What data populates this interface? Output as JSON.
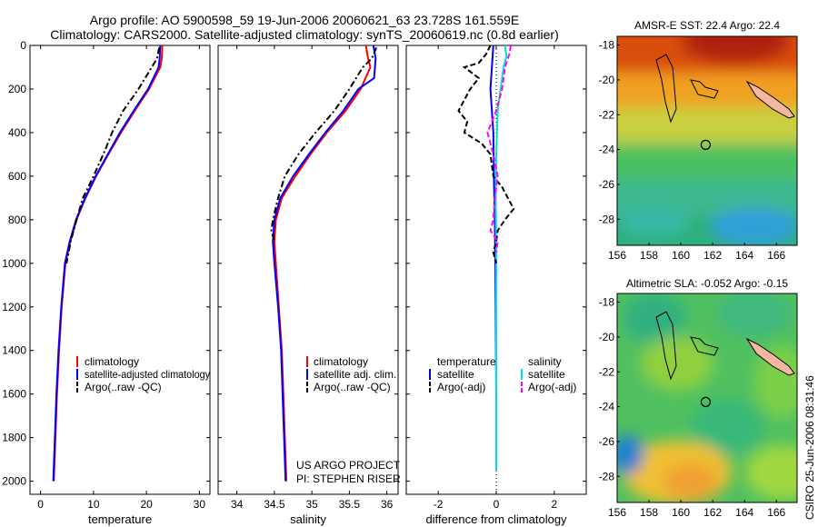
{
  "header": {
    "title_line1": "Argo profile: AO 5900598_59 19-Jun-2006 20060621_63 23.728S 161.559E",
    "title_line2": "Climatology: CARS2000. Satellite-adjusted climatology: synTS_20060619.nc (0.8d earlier)"
  },
  "footer": {
    "project": "US ARGO PROJECT",
    "pi": "PI: STEPHEN RISER",
    "stamp": "CSIRO 25-Jun-2006 08:31:46"
  },
  "colors": {
    "climatology": "#ff0000",
    "satellite": "#0000ff",
    "argo": "#000000",
    "sat_salinity": "#00e0e0",
    "argo_salinity": "#ff00ff"
  },
  "chart_data": [
    {
      "type": "line",
      "id": "temperature",
      "xlabel": "temperature",
      "ylabel": "",
      "xlim": [
        -2,
        32
      ],
      "ylim": [
        0,
        2060
      ],
      "xticks": [
        0,
        10,
        20,
        30
      ],
      "yticks": [
        0,
        200,
        400,
        600,
        800,
        1000,
        1200,
        1400,
        1600,
        1800,
        2000
      ],
      "legend": {
        "position": "lower-right",
        "entries": [
          "climatology",
          "satellite-adjusted climatology",
          "Argo(..raw -QC)"
        ]
      },
      "series": [
        {
          "name": "climatology",
          "color": "#ff0000",
          "dash": "solid",
          "points": [
            [
              23.0,
              0
            ],
            [
              22.9,
              60
            ],
            [
              22.6,
              100
            ],
            [
              20.5,
              200
            ],
            [
              17.8,
              300
            ],
            [
              15.2,
              400
            ],
            [
              12.8,
              500
            ],
            [
              10.5,
              600
            ],
            [
              8.5,
              700
            ],
            [
              6.8,
              800
            ],
            [
              5.6,
              900
            ],
            [
              4.7,
              1000
            ],
            [
              4.0,
              1200
            ],
            [
              3.5,
              1400
            ],
            [
              3.1,
              1600
            ],
            [
              2.8,
              1800
            ],
            [
              2.5,
              2000
            ]
          ]
        },
        {
          "name": "satellite-adjusted climatology",
          "color": "#0000ff",
          "dash": "solid",
          "points": [
            [
              22.6,
              0
            ],
            [
              22.5,
              60
            ],
            [
              22.3,
              100
            ],
            [
              20.3,
              200
            ],
            [
              17.6,
              300
            ],
            [
              15.0,
              400
            ],
            [
              12.7,
              500
            ],
            [
              10.4,
              600
            ],
            [
              8.4,
              700
            ],
            [
              6.7,
              800
            ],
            [
              5.5,
              900
            ],
            [
              4.6,
              1000
            ],
            [
              3.9,
              1200
            ],
            [
              3.4,
              1400
            ],
            [
              3.0,
              1600
            ],
            [
              2.7,
              1800
            ],
            [
              2.4,
              2000
            ]
          ]
        },
        {
          "name": "Argo(..raw -QC)",
          "color": "#000000",
          "dash": "dashdot",
          "points": [
            [
              22.4,
              10
            ],
            [
              22.0,
              60
            ],
            [
              21.0,
              100
            ],
            [
              18.5,
              200
            ],
            [
              15.6,
              300
            ],
            [
              13.5,
              400
            ],
            [
              12.2,
              480
            ],
            [
              10.0,
              600
            ],
            [
              8.0,
              700
            ],
            [
              6.8,
              800
            ],
            [
              5.7,
              900
            ],
            [
              4.9,
              1000
            ]
          ]
        }
      ]
    },
    {
      "type": "line",
      "id": "salinity",
      "xlabel": "salinity",
      "ylabel": "",
      "xlim": [
        33.75,
        36.15
      ],
      "ylim": [
        0,
        2060
      ],
      "xticks": [
        34,
        34.5,
        35,
        35.5,
        36
      ],
      "yticks": [],
      "legend": {
        "position": "lower-right",
        "entries": [
          "climatology",
          "satellite adj. clim.",
          "Argo(..raw -QC)"
        ]
      },
      "series": [
        {
          "name": "climatology",
          "color": "#ff0000",
          "dash": "solid",
          "points": [
            [
              35.72,
              0
            ],
            [
              35.75,
              60
            ],
            [
              35.78,
              100
            ],
            [
              35.65,
              200
            ],
            [
              35.45,
              300
            ],
            [
              35.2,
              400
            ],
            [
              34.98,
              500
            ],
            [
              34.78,
              600
            ],
            [
              34.6,
              700
            ],
            [
              34.52,
              800
            ],
            [
              34.5,
              900
            ],
            [
              34.52,
              1000
            ],
            [
              34.56,
              1200
            ],
            [
              34.6,
              1400
            ],
            [
              34.62,
              1600
            ],
            [
              34.64,
              1800
            ],
            [
              34.66,
              2000
            ]
          ]
        },
        {
          "name": "satellite adj. clim.",
          "color": "#0000ff",
          "dash": "solid",
          "points": [
            [
              35.82,
              0
            ],
            [
              35.85,
              60
            ],
            [
              35.83,
              150
            ],
            [
              35.62,
              200
            ],
            [
              35.42,
              300
            ],
            [
              35.18,
              400
            ],
            [
              34.96,
              500
            ],
            [
              34.75,
              600
            ],
            [
              34.58,
              700
            ],
            [
              34.5,
              800
            ],
            [
              34.48,
              900
            ],
            [
              34.5,
              1000
            ],
            [
              34.55,
              1200
            ],
            [
              34.59,
              1400
            ],
            [
              34.61,
              1600
            ],
            [
              34.63,
              1800
            ],
            [
              34.65,
              2000
            ]
          ]
        },
        {
          "name": "Argo(..raw -QC)",
          "color": "#000000",
          "dash": "dashdot",
          "points": [
            [
              35.86,
              10
            ],
            [
              35.8,
              60
            ],
            [
              35.68,
              100
            ],
            [
              35.5,
              200
            ],
            [
              35.3,
              300
            ],
            [
              35.05,
              400
            ],
            [
              34.82,
              500
            ],
            [
              34.64,
              600
            ],
            [
              34.55,
              700
            ],
            [
              34.48,
              800
            ],
            [
              34.46,
              850
            ],
            [
              34.5,
              900
            ]
          ]
        }
      ]
    },
    {
      "type": "line",
      "id": "difference",
      "xlabel": "difference from climatology",
      "ylabel": "",
      "xlim": [
        -3.1,
        3.1
      ],
      "ylim": [
        0,
        2060
      ],
      "xticks": [
        -2,
        0,
        2
      ],
      "yticks": [],
      "legend": {
        "position": "lower",
        "entries": [
          "temperature",
          "salinity",
          "satellite",
          "Argo(-adj)",
          "satellite",
          "Argo(-adj)"
        ]
      },
      "series": [
        {
          "name": "temperature satellite",
          "color": "#0000ff",
          "dash": "solid",
          "points": [
            [
              -0.1,
              0
            ],
            [
              -0.15,
              100
            ],
            [
              -0.2,
              200
            ],
            [
              -0.15,
              300
            ],
            [
              -0.1,
              400
            ],
            [
              -0.08,
              600
            ],
            [
              -0.05,
              800
            ],
            [
              -0.03,
              1000
            ],
            [
              -0.02,
              1200
            ],
            [
              -0.01,
              1400
            ],
            [
              0,
              1600
            ],
            [
              0,
              1800
            ],
            [
              0,
              1950
            ]
          ]
        },
        {
          "name": "salinity satellite",
          "color": "#00e0e0",
          "dash": "solid",
          "points": [
            [
              0.3,
              0
            ],
            [
              0.35,
              50
            ],
            [
              0.25,
              100
            ],
            [
              0.15,
              200
            ],
            [
              0.05,
              300
            ],
            [
              0,
              500
            ],
            [
              -0.02,
              700
            ],
            [
              0,
              900
            ],
            [
              0,
              1200
            ],
            [
              0,
              1600
            ],
            [
              0,
              1950
            ]
          ]
        },
        {
          "name": "temperature Argo(-adj)",
          "color": "#000000",
          "dash": "dashed",
          "points": [
            [
              -0.2,
              0
            ],
            [
              -0.35,
              40
            ],
            [
              -0.6,
              80
            ],
            [
              -1.1,
              100
            ],
            [
              -0.6,
              150
            ],
            [
              -0.9,
              200
            ],
            [
              -1.3,
              300
            ],
            [
              -1.0,
              350
            ],
            [
              -1.1,
              400
            ],
            [
              -0.5,
              450
            ],
            [
              -0.2,
              500
            ],
            [
              -0.1,
              600
            ],
            [
              0.2,
              650
            ],
            [
              0.6,
              750
            ],
            [
              0.3,
              800
            ],
            [
              0.05,
              850
            ],
            [
              0,
              900
            ],
            [
              -0.1,
              950
            ],
            [
              0,
              1000
            ]
          ]
        },
        {
          "name": "salinity Argo(-adj)",
          "color": "#ff00ff",
          "dash": "dashed",
          "points": [
            [
              0.5,
              0
            ],
            [
              0.45,
              40
            ],
            [
              0.3,
              100
            ],
            [
              0.2,
              200
            ],
            [
              0.0,
              300
            ],
            [
              -0.3,
              400
            ],
            [
              -0.1,
              500
            ],
            [
              0.05,
              600
            ],
            [
              -0.05,
              700
            ],
            [
              -0.1,
              800
            ],
            [
              -0.2,
              850
            ],
            [
              0.05,
              900
            ],
            [
              0,
              950
            ]
          ]
        }
      ]
    },
    {
      "type": "heatmap",
      "id": "sst-map",
      "title": "AMSR-E SST: 22.4 Argo: 22.4",
      "xlim": [
        156,
        167.3
      ],
      "ylim": [
        -29.5,
        -17.5
      ],
      "xticks": [
        156,
        158,
        160,
        162,
        164,
        166
      ],
      "yticks": [
        -18,
        -20,
        -22,
        -24,
        -26,
        -28
      ],
      "argo_position": [
        161.56,
        -23.73
      ]
    },
    {
      "type": "heatmap",
      "id": "sla-map",
      "title": "Altimetric SLA: -0.052 Argo: -0.15",
      "xlim": [
        156,
        167.3
      ],
      "ylim": [
        -29.5,
        -17.5
      ],
      "xticks": [
        156,
        158,
        160,
        162,
        164,
        166
      ],
      "yticks": [
        -18,
        -20,
        -22,
        -24,
        -26,
        -28
      ],
      "argo_position": [
        161.56,
        -23.73
      ]
    }
  ]
}
